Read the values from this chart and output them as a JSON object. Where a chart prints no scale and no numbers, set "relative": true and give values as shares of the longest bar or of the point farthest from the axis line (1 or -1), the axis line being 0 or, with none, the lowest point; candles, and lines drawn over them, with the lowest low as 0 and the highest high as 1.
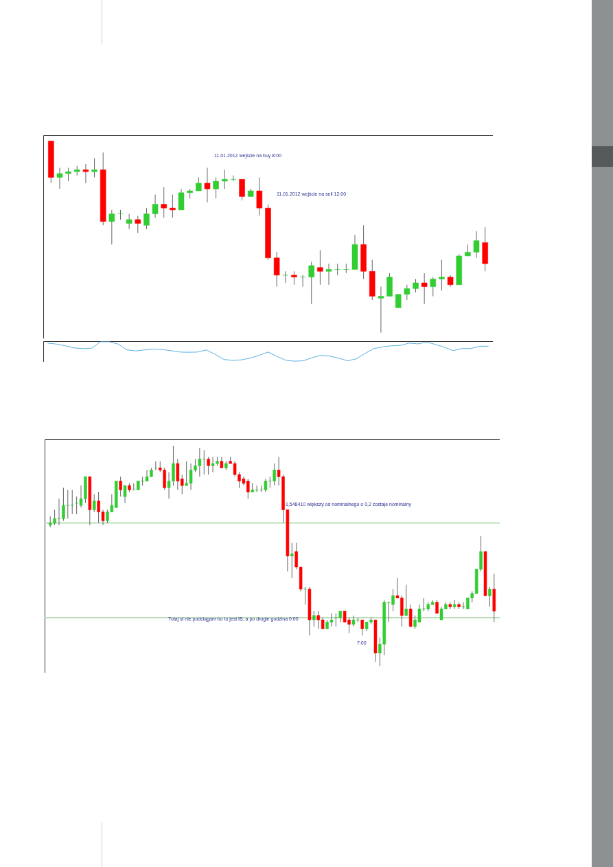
{
  "chart_data": [
    {
      "type": "candlestick",
      "relative": true,
      "categories": [
        null,
        null,
        null,
        null,
        null,
        null,
        null,
        null,
        null,
        null,
        null,
        null,
        null,
        null,
        null,
        null,
        null,
        null,
        null,
        null,
        null,
        null,
        null,
        null,
        null,
        null,
        null,
        null,
        null,
        null,
        null,
        null,
        null,
        null,
        null,
        null,
        null,
        null,
        null,
        null,
        null,
        null,
        null,
        null,
        null,
        null,
        null,
        null,
        null,
        null,
        null
      ],
      "ohlc": [
        [
          1.0,
          1.0,
          0.78,
          0.81
        ],
        [
          0.81,
          0.86,
          0.75,
          0.83
        ],
        [
          0.83,
          0.86,
          0.79,
          0.84
        ],
        [
          0.84,
          0.87,
          0.82,
          0.85
        ],
        [
          0.85,
          0.88,
          0.78,
          0.84
        ],
        [
          0.84,
          0.91,
          0.81,
          0.85
        ],
        [
          0.85,
          0.94,
          0.56,
          0.58
        ],
        [
          0.58,
          0.64,
          0.46,
          0.62
        ],
        [
          0.62,
          0.64,
          0.59,
          0.62
        ],
        [
          0.57,
          0.62,
          0.54,
          0.59
        ],
        [
          0.59,
          0.61,
          0.52,
          0.57
        ],
        [
          0.56,
          0.65,
          0.54,
          0.62
        ],
        [
          0.62,
          0.72,
          0.6,
          0.67
        ],
        [
          0.67,
          0.76,
          0.6,
          0.65
        ],
        [
          0.65,
          0.72,
          0.6,
          0.64
        ],
        [
          0.64,
          0.75,
          0.64,
          0.73
        ],
        [
          0.73,
          0.75,
          0.7,
          0.74
        ],
        [
          0.74,
          0.81,
          0.74,
          0.78
        ],
        [
          0.78,
          0.86,
          0.68,
          0.75
        ],
        [
          0.75,
          0.81,
          0.7,
          0.79
        ],
        [
          0.79,
          0.85,
          0.75,
          0.8
        ],
        [
          0.8,
          0.82,
          0.79,
          0.8
        ],
        [
          0.8,
          0.8,
          0.69,
          0.71
        ],
        [
          0.71,
          0.75,
          0.71,
          0.74
        ],
        [
          0.74,
          0.81,
          0.61,
          0.65
        ],
        [
          0.65,
          0.67,
          0.38,
          0.39
        ],
        [
          0.39,
          0.42,
          0.24,
          0.3
        ],
        [
          0.3,
          0.32,
          0.26,
          0.3
        ],
        [
          0.3,
          0.32,
          0.25,
          0.29
        ],
        [
          0.29,
          0.3,
          0.24,
          0.29
        ],
        [
          0.29,
          0.37,
          0.15,
          0.35
        ],
        [
          0.34,
          0.43,
          0.25,
          0.32
        ],
        [
          0.32,
          0.36,
          0.25,
          0.33
        ],
        [
          0.33,
          0.36,
          0.3,
          0.33
        ],
        [
          0.33,
          0.36,
          0.31,
          0.33
        ],
        [
          0.33,
          0.51,
          0.33,
          0.46
        ],
        [
          0.46,
          0.56,
          0.28,
          0.32
        ],
        [
          0.32,
          0.38,
          0.17,
          0.19
        ],
        [
          0.18,
          0.24,
          0.0,
          0.19
        ],
        [
          0.19,
          0.31,
          0.19,
          0.29
        ],
        [
          0.13,
          0.2,
          0.13,
          0.2
        ],
        [
          0.2,
          0.25,
          0.17,
          0.23
        ],
        [
          0.23,
          0.28,
          0.21,
          0.26
        ],
        [
          0.26,
          0.31,
          0.15,
          0.24
        ],
        [
          0.24,
          0.29,
          0.19,
          0.28
        ],
        [
          0.28,
          0.38,
          0.22,
          0.29
        ],
        [
          0.29,
          0.3,
          0.24,
          0.25
        ],
        [
          0.25,
          0.41,
          0.25,
          0.4
        ],
        [
          0.4,
          0.46,
          0.4,
          0.42
        ],
        [
          0.42,
          0.53,
          0.39,
          0.48
        ],
        [
          0.47,
          0.55,
          0.32,
          0.36
        ]
      ],
      "colors": [
        "#ff0000",
        "#32cd32",
        "#32cd32",
        "#32cd32",
        "#ff0000",
        "#32cd32",
        "#ff0000",
        "#32cd32",
        "#32cd32",
        "#32cd32",
        "#ff0000",
        "#32cd32",
        "#32cd32",
        "#ff0000",
        "#ff0000",
        "#32cd32",
        "#32cd32",
        "#32cd32",
        "#ff0000",
        "#32cd32",
        "#32cd32",
        "#32cd32",
        "#ff0000",
        "#32cd32",
        "#ff0000",
        "#ff0000",
        "#ff0000",
        "#32cd32",
        "#ff0000",
        "#32cd32",
        "#32cd32",
        "#ff0000",
        "#32cd32",
        "#32cd32",
        "#32cd32",
        "#32cd32",
        "#ff0000",
        "#ff0000",
        "#32cd32",
        "#32cd32",
        "#32cd32",
        "#32cd32",
        "#32cd32",
        "#ff0000",
        "#32cd32",
        "#32cd32",
        "#ff0000",
        "#32cd32",
        "#32cd32",
        "#32cd32",
        "#ff0000"
      ],
      "annotations": [
        "11.01.2012 wejście na buy 8:00",
        "11.01.2012 wejście na sell 12:00"
      ]
    },
    {
      "type": "line",
      "relative": true,
      "color": "#5aaee0",
      "categories": [
        null,
        null,
        null,
        null,
        null,
        null,
        null,
        null,
        null,
        null,
        null,
        null,
        null,
        null,
        null,
        null,
        null,
        null,
        null,
        null,
        null,
        null,
        null,
        null,
        null,
        null,
        null,
        null,
        null,
        null,
        null,
        null,
        null,
        null,
        null,
        null,
        null,
        null,
        null,
        null,
        null,
        null,
        null,
        null,
        null,
        null,
        null,
        null,
        null,
        null,
        null
      ],
      "values": [
        0.93,
        0.88,
        0.79,
        0.68,
        0.65,
        0.67,
        1.0,
        1.0,
        0.88,
        0.58,
        0.53,
        0.58,
        0.63,
        0.6,
        0.54,
        0.47,
        0.46,
        0.47,
        0.58,
        0.35,
        0.09,
        0.04,
        0.07,
        0.16,
        0.3,
        0.47,
        0.25,
        0.05,
        0.0,
        0.02,
        0.18,
        0.3,
        0.26,
        0.16,
        0.02,
        0.12,
        0.4,
        0.65,
        0.74,
        0.79,
        0.81,
        0.93,
        0.89,
        0.98,
        0.86,
        0.72,
        0.54,
        0.65,
        0.65,
        0.77,
        0.77
      ]
    },
    {
      "type": "candlestick",
      "relative": true,
      "categories": [
        null,
        null,
        null,
        null,
        null,
        null,
        null,
        null,
        null,
        null,
        null,
        null,
        null,
        null,
        null,
        null,
        null,
        null,
        null,
        null,
        null,
        null,
        null,
        null,
        null,
        null,
        null,
        null,
        null,
        null,
        null,
        null,
        null,
        null,
        null,
        null,
        null,
        null,
        null,
        null,
        null,
        null,
        null,
        null,
        null,
        null,
        null,
        null,
        null,
        null,
        null,
        null,
        null,
        null,
        null,
        null,
        null,
        null,
        null,
        null,
        null,
        null,
        null,
        null,
        null,
        null,
        null,
        null,
        null,
        null,
        null,
        null,
        null,
        null,
        null,
        null,
        null,
        null,
        null,
        null,
        null,
        null,
        null,
        null,
        null,
        null,
        null,
        null,
        null,
        null,
        null,
        null,
        null,
        null,
        null,
        null,
        null,
        null,
        null,
        null,
        null,
        null
      ],
      "ohlc": [
        [
          0.64,
          0.68,
          0.63,
          0.65
        ],
        [
          0.65,
          0.71,
          0.64,
          0.67
        ],
        [
          0.67,
          0.76,
          0.64,
          0.67
        ],
        [
          0.67,
          0.81,
          0.66,
          0.73
        ],
        [
          0.73,
          0.8,
          0.67,
          0.73
        ],
        [
          0.73,
          0.8,
          0.69,
          0.73
        ],
        [
          0.74,
          0.77,
          0.69,
          0.74
        ],
        [
          0.73,
          0.82,
          0.72,
          0.76
        ],
        [
          0.76,
          0.86,
          0.74,
          0.86
        ],
        [
          0.86,
          0.86,
          0.64,
          0.71
        ],
        [
          0.71,
          0.78,
          0.7,
          0.75
        ],
        [
          0.75,
          0.79,
          0.65,
          0.7
        ],
        [
          0.7,
          0.71,
          0.64,
          0.66
        ],
        [
          0.66,
          0.71,
          0.65,
          0.7
        ],
        [
          0.7,
          0.78,
          0.7,
          0.73
        ],
        [
          0.72,
          0.84,
          0.72,
          0.84
        ],
        [
          0.84,
          0.86,
          0.77,
          0.8
        ],
        [
          0.77,
          0.82,
          0.74,
          0.82
        ],
        [
          0.82,
          0.83,
          0.79,
          0.8
        ],
        [
          0.8,
          0.83,
          0.8,
          0.8
        ],
        [
          0.8,
          0.84,
          0.8,
          0.84
        ],
        [
          0.84,
          0.86,
          0.82,
          0.84
        ],
        [
          0.84,
          0.89,
          0.84,
          0.86
        ],
        [
          0.86,
          0.9,
          0.86,
          0.89
        ],
        [
          0.9,
          0.93,
          0.89,
          0.9
        ],
        [
          0.9,
          0.93,
          0.88,
          0.89
        ],
        [
          0.89,
          0.9,
          0.8,
          0.81
        ],
        [
          0.81,
          0.88,
          0.76,
          0.84
        ],
        [
          0.84,
          1.0,
          0.82,
          0.92
        ],
        [
          0.92,
          0.94,
          0.8,
          0.84
        ],
        [
          0.85,
          0.87,
          0.78,
          0.82
        ],
        [
          0.82,
          0.93,
          0.82,
          0.83
        ],
        [
          0.83,
          0.92,
          0.8,
          0.89
        ],
        [
          0.89,
          0.94,
          0.88,
          0.91
        ],
        [
          0.91,
          0.99,
          0.86,
          0.94
        ],
        [
          0.94,
          0.98,
          0.87,
          0.94
        ],
        [
          0.94,
          0.95,
          0.87,
          0.91
        ],
        [
          0.91,
          0.95,
          0.88,
          0.92
        ],
        [
          0.92,
          0.95,
          0.91,
          0.93
        ],
        [
          0.93,
          0.95,
          0.9,
          0.9
        ],
        [
          0.9,
          0.93,
          0.89,
          0.92
        ],
        [
          0.93,
          0.95,
          0.92,
          0.92
        ],
        [
          0.92,
          0.93,
          0.86,
          0.87
        ],
        [
          0.87,
          0.88,
          0.81,
          0.84
        ],
        [
          0.85,
          0.86,
          0.82,
          0.83
        ],
        [
          0.84,
          0.85,
          0.76,
          0.79
        ],
        [
          0.79,
          0.83,
          0.79,
          0.8
        ],
        [
          0.8,
          0.82,
          0.79,
          0.8
        ],
        [
          0.8,
          0.82,
          0.79,
          0.8
        ],
        [
          0.8,
          0.85,
          0.79,
          0.84
        ],
        [
          0.84,
          0.86,
          0.81,
          0.84
        ],
        [
          0.84,
          0.92,
          0.82,
          0.89
        ],
        [
          0.89,
          0.95,
          0.82,
          0.86
        ],
        [
          0.86,
          0.87,
          0.65,
          0.71
        ],
        [
          0.71,
          0.71,
          0.43,
          0.5
        ],
        [
          0.5,
          0.56,
          0.4,
          0.51
        ],
        [
          0.52,
          0.56,
          0.44,
          0.45
        ],
        [
          0.45,
          0.45,
          0.34,
          0.35
        ],
        [
          0.35,
          0.36,
          0.28,
          0.35
        ],
        [
          0.35,
          0.36,
          0.14,
          0.21
        ],
        [
          0.21,
          0.25,
          0.18,
          0.23
        ],
        [
          0.23,
          0.25,
          0.17,
          0.21
        ],
        [
          0.21,
          0.22,
          0.17,
          0.17
        ],
        [
          0.17,
          0.21,
          0.17,
          0.2
        ],
        [
          0.2,
          0.24,
          0.18,
          0.21
        ],
        [
          0.22,
          0.24,
          0.18,
          0.22
        ],
        [
          0.22,
          0.25,
          0.2,
          0.25
        ],
        [
          0.25,
          0.25,
          0.2,
          0.2
        ],
        [
          0.21,
          0.22,
          0.15,
          0.19
        ],
        [
          0.19,
          0.23,
          0.18,
          0.21
        ],
        [
          0.21,
          0.22,
          0.2,
          0.21
        ],
        [
          0.21,
          0.21,
          0.14,
          0.17
        ],
        [
          0.17,
          0.2,
          0.16,
          0.2
        ],
        [
          0.2,
          0.22,
          0.19,
          0.21
        ],
        [
          0.21,
          0.21,
          0.02,
          0.06
        ],
        [
          0.06,
          0.13,
          0.0,
          0.1
        ],
        [
          0.1,
          0.3,
          0.05,
          0.29
        ],
        [
          0.29,
          0.29,
          0.2,
          0.29
        ],
        [
          0.28,
          0.35,
          0.25,
          0.32
        ],
        [
          0.32,
          0.4,
          0.31,
          0.31
        ],
        [
          0.31,
          0.32,
          0.18,
          0.23
        ],
        [
          0.23,
          0.37,
          0.23,
          0.26
        ],
        [
          0.26,
          0.28,
          0.18,
          0.18
        ],
        [
          0.18,
          0.23,
          0.17,
          0.21
        ],
        [
          0.2,
          0.28,
          0.2,
          0.26
        ],
        [
          0.26,
          0.31,
          0.25,
          0.26
        ],
        [
          0.26,
          0.29,
          0.25,
          0.28
        ],
        [
          0.28,
          0.3,
          0.28,
          0.29
        ],
        [
          0.29,
          0.3,
          0.24,
          0.24
        ],
        [
          0.21,
          0.27,
          0.21,
          0.26
        ],
        [
          0.26,
          0.29,
          0.26,
          0.28
        ],
        [
          0.28,
          0.29,
          0.26,
          0.27
        ],
        [
          0.27,
          0.3,
          0.26,
          0.28
        ],
        [
          0.28,
          0.29,
          0.26,
          0.27
        ],
        [
          0.27,
          0.29,
          0.26,
          0.27
        ],
        [
          0.26,
          0.31,
          0.26,
          0.31
        ],
        [
          0.31,
          0.34,
          0.29,
          0.33
        ],
        [
          0.33,
          0.44,
          0.33,
          0.44
        ],
        [
          0.44,
          0.59,
          0.43,
          0.52
        ],
        [
          0.52,
          0.52,
          0.32,
          0.32
        ],
        [
          0.32,
          0.36,
          0.27,
          0.35
        ],
        [
          0.35,
          0.42,
          0.2,
          0.25
        ]
      ],
      "colors": [
        "#32cd32",
        "#32cd32",
        "#32cd32",
        "#32cd32",
        "#32cd32",
        "#32cd32",
        "#32cd32",
        "#32cd32",
        "#32cd32",
        "#ff0000",
        "#32cd32",
        "#ff0000",
        "#ff0000",
        "#32cd32",
        "#32cd32",
        "#32cd32",
        "#ff0000",
        "#32cd32",
        "#ff0000",
        "#32cd32",
        "#32cd32",
        "#32cd32",
        "#32cd32",
        "#32cd32",
        "#32cd32",
        "#ff0000",
        "#ff0000",
        "#32cd32",
        "#32cd32",
        "#ff0000",
        "#ff0000",
        "#32cd32",
        "#32cd32",
        "#32cd32",
        "#32cd32",
        "#32cd32",
        "#ff0000",
        "#32cd32",
        "#32cd32",
        "#ff0000",
        "#32cd32",
        "#ff0000",
        "#ff0000",
        "#ff0000",
        "#ff0000",
        "#ff0000",
        "#32cd32",
        "#32cd32",
        "#32cd32",
        "#32cd32",
        "#32cd32",
        "#32cd32",
        "#ff0000",
        "#ff0000",
        "#ff0000",
        "#32cd32",
        "#ff0000",
        "#ff0000",
        "#32cd32",
        "#ff0000",
        "#32cd32",
        "#ff0000",
        "#ff0000",
        "#32cd32",
        "#32cd32",
        "#32cd32",
        "#32cd32",
        "#ff0000",
        "#ff0000",
        "#32cd32",
        "#32cd32",
        "#ff0000",
        "#32cd32",
        "#32cd32",
        "#ff0000",
        "#32cd32",
        "#32cd32",
        "#32cd32",
        "#32cd32",
        "#ff0000",
        "#ff0000",
        "#32cd32",
        "#ff0000",
        "#32cd32",
        "#32cd32",
        "#32cd32",
        "#32cd32",
        "#32cd32",
        "#ff0000",
        "#32cd32",
        "#32cd32",
        "#ff0000",
        "#32cd32",
        "#ff0000",
        "#32cd32",
        "#32cd32",
        "#32cd32",
        "#32cd32",
        "#32cd32",
        "#ff0000",
        "#32cd32",
        "#ff0000"
      ],
      "ref_lines": [
        {
          "axis": "y",
          "value": 0.65,
          "color": "#9fd49f"
        },
        {
          "axis": "y",
          "value": 0.22,
          "color": "#9fd49f"
        }
      ],
      "annotations": [
        "1,548410 większy od nominalnego o 0,2 zostaje nominalny",
        "Tutaj sl nie podciągam bo to jest IB, a po drugie godzina 0:00",
        "7:00"
      ]
    }
  ]
}
